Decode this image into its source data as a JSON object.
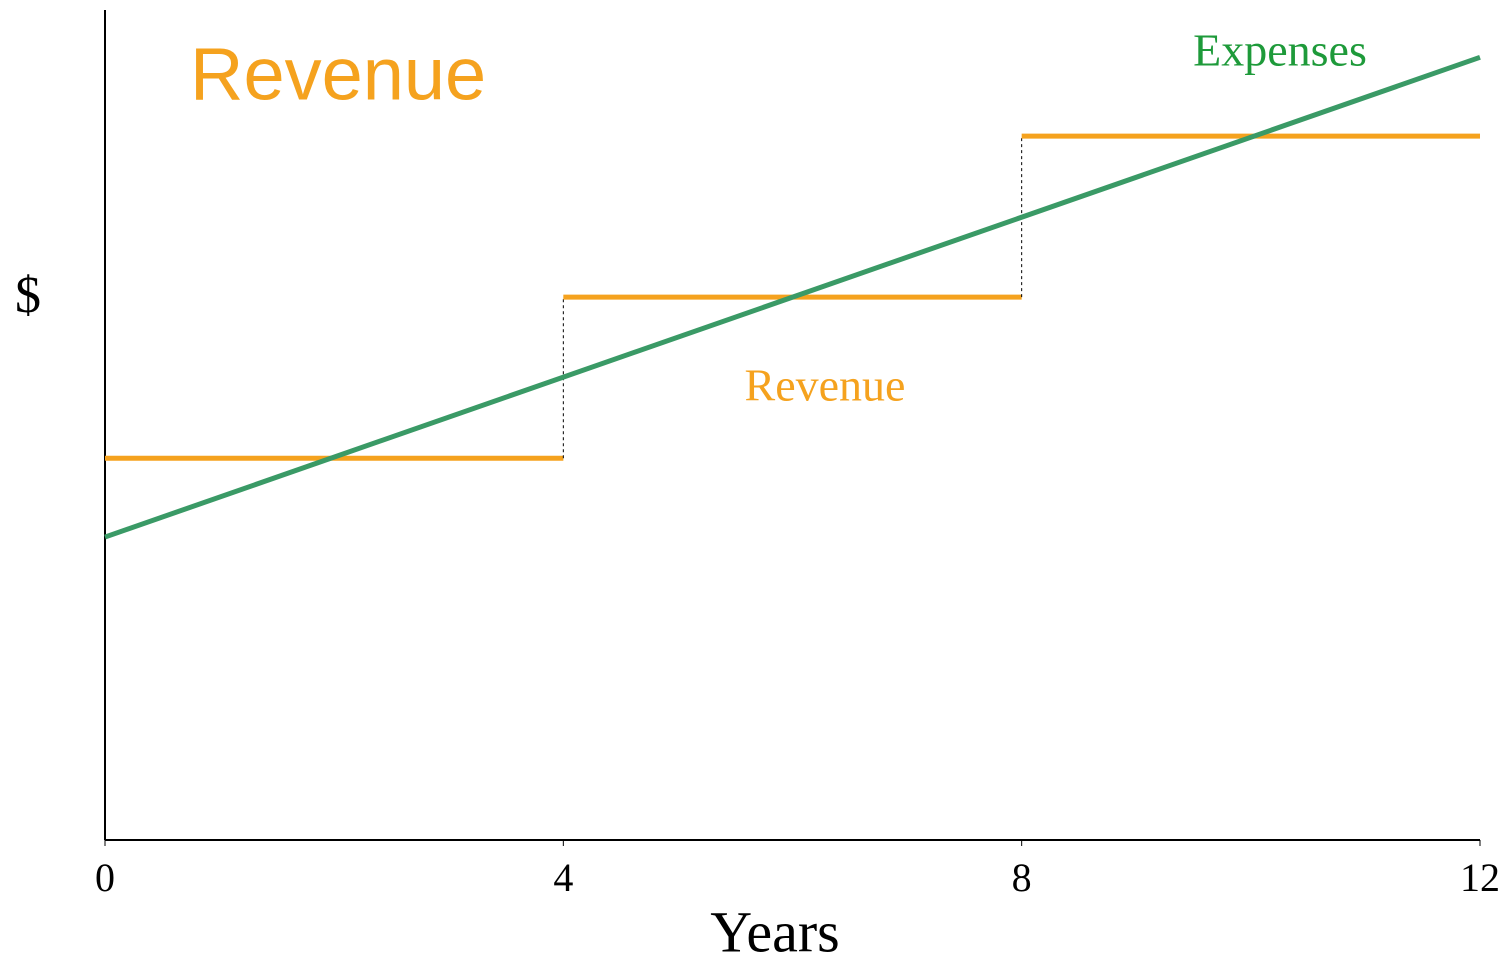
{
  "chart_data": {
    "type": "line",
    "title": "Revenue",
    "x_label": "Years",
    "y_label": "$",
    "xlim": [
      0,
      12
    ],
    "ylim": [
      0,
      100
    ],
    "xticks": [
      0,
      4,
      8,
      12
    ],
    "series": [
      {
        "name": "Revenue",
        "color": "#f5a21e",
        "step": true,
        "x": [
          0,
          4,
          8
        ],
        "values": [
          46,
          65.4,
          84.8
        ]
      },
      {
        "name": "Expenses",
        "color": "#3a9a66",
        "x": [
          0,
          12
        ],
        "values": [
          36.5,
          94.3
        ]
      }
    ]
  }
}
